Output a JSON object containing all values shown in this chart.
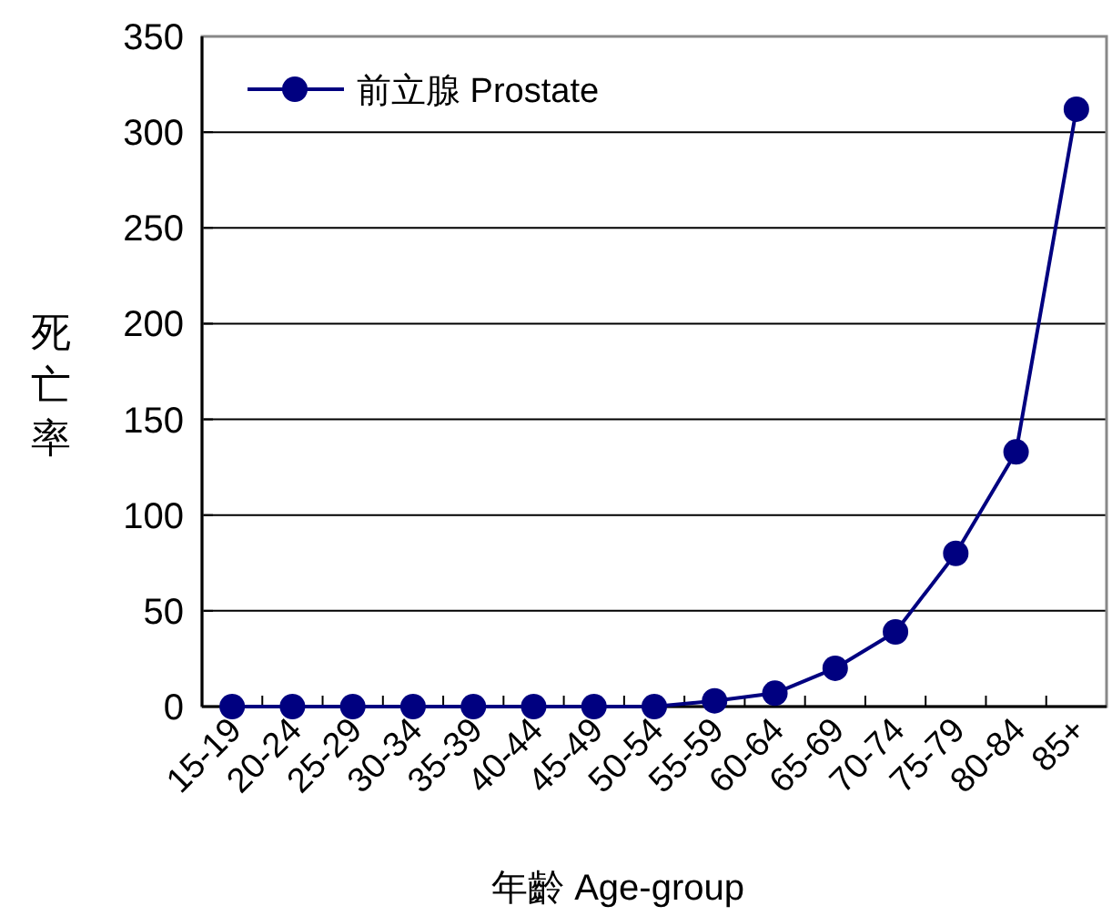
{
  "chart_data": {
    "type": "line",
    "xlabel": "年齡 Age-group",
    "ylabel": "死亡率",
    "categories": [
      "15-19",
      "20-24",
      "25-29",
      "30-34",
      "35-39",
      "40-44",
      "45-49",
      "50-54",
      "55-59",
      "60-64",
      "65-69",
      "70-74",
      "75-79",
      "80-84",
      "85+"
    ],
    "series": [
      {
        "name": "前立腺 Prostate",
        "color": "#000080",
        "values": [
          0,
          0,
          0,
          0,
          0,
          0,
          0,
          0,
          3,
          7,
          20,
          39,
          80,
          133,
          312
        ]
      }
    ],
    "ylim": [
      0,
      350
    ],
    "yticks": [
      0,
      50,
      100,
      150,
      200,
      250,
      300,
      350
    ],
    "grid": "y",
    "legend": "top left",
    "marker": "circle",
    "line_style": "solid"
  }
}
